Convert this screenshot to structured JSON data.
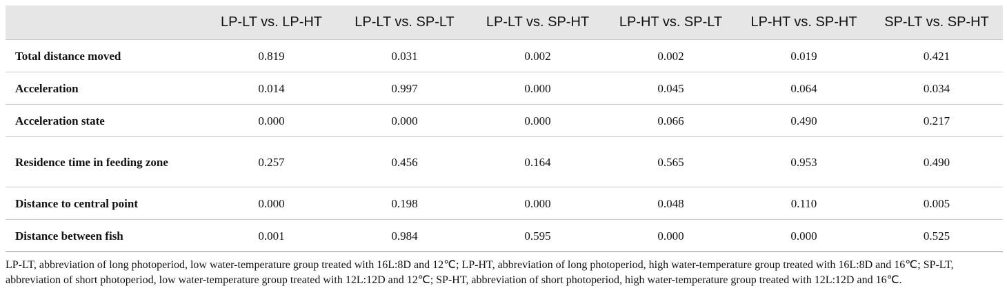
{
  "table": {
    "columns": [
      "",
      "LP-LT vs. LP-HT",
      "LP-LT vs. SP-LT",
      "LP-LT vs. SP-HT",
      "LP-HT vs. SP-LT",
      "LP-HT vs. SP-HT",
      "SP-LT vs. SP-HT"
    ],
    "rows": [
      [
        "Total distance moved",
        "0.819",
        "0.031",
        "0.002",
        "0.002",
        "0.019",
        "0.421"
      ],
      [
        "Acceleration",
        "0.014",
        "0.997",
        "0.000",
        "0.045",
        "0.064",
        "0.034"
      ],
      [
        "Acceleration state",
        "0.000",
        "0.000",
        "0.000",
        "0.066",
        "0.490",
        "0.217"
      ],
      [
        "Residence time in feeding zone",
        "0.257",
        "0.456",
        "0.164",
        "0.565",
        "0.953",
        "0.490"
      ],
      [
        "Distance to central point",
        "0.000",
        "0.198",
        "0.000",
        "0.048",
        "0.110",
        "0.005"
      ],
      [
        "Distance between fish",
        "0.001",
        "0.984",
        "0.595",
        "0.000",
        "0.000",
        "0.525"
      ]
    ]
  },
  "footnote": "LP-LT, abbreviation of long photoperiod, low water-temperature group treated with 16L:8D and 12℃; LP-HT, abbreviation of long photoperiod, high water-temperature group treated with 16L:8D and 16℃; SP-LT, abbreviation of short photoperiod, low water-temperature group treated with 12L:12D and 12℃; SP-HT, abbreviation of short photoperiod, high water-temperature group treated with 12L:12D and 16℃."
}
